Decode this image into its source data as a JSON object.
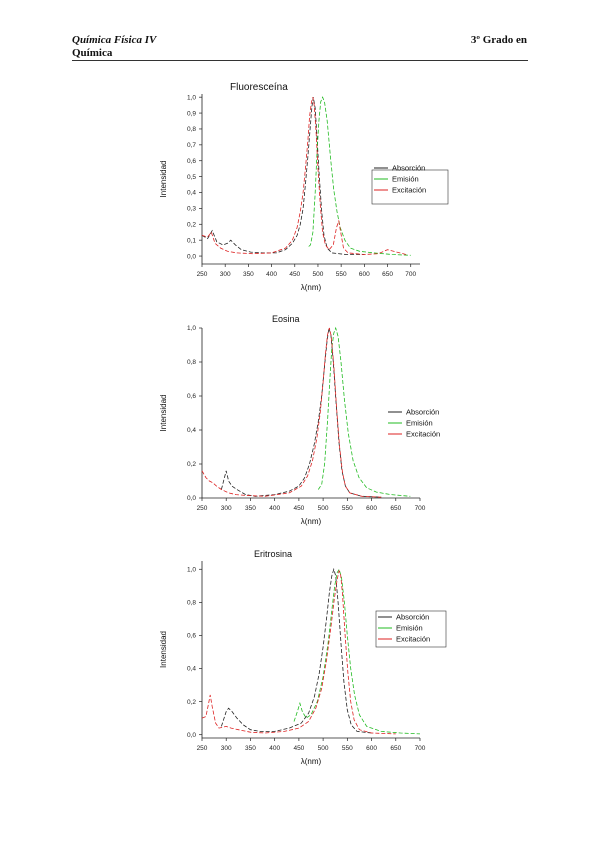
{
  "header": {
    "course": "Química Física IV",
    "degree_line1": "3º Grado en",
    "degree_line2": "Química"
  },
  "charts": [
    {
      "type": "line",
      "title": "Fluoresceína",
      "xlabel": "λ(nm)",
      "ylabel": "Intensidad",
      "xlim": [
        250,
        720
      ],
      "ylim": [
        -0.05,
        1.02
      ],
      "xticks": [
        250,
        300,
        350,
        400,
        450,
        500,
        550,
        600,
        650,
        700
      ],
      "yticks": [
        0.0,
        0.1,
        0.2,
        0.3,
        0.4,
        0.5,
        0.6,
        0.7,
        0.8,
        0.9,
        1.0
      ],
      "ytick_labels": [
        "0,0",
        "0,1",
        "0,2",
        "0,3",
        "0,4",
        "0,5",
        "0,6",
        "0,7",
        "0,8",
        "0,9",
        "1,0"
      ],
      "legend_position": "right",
      "legend_box": true,
      "series": [
        {
          "name": "Absorción",
          "color": "#222222",
          "dash": "4,2",
          "points": [
            [
              250,
              0.13
            ],
            [
              262,
              0.11
            ],
            [
              272,
              0.16
            ],
            [
              282,
              0.09
            ],
            [
              295,
              0.07
            ],
            [
              305,
              0.08
            ],
            [
              312,
              0.1
            ],
            [
              322,
              0.07
            ],
            [
              335,
              0.04
            ],
            [
              355,
              0.025
            ],
            [
              380,
              0.02
            ],
            [
              410,
              0.02
            ],
            [
              430,
              0.04
            ],
            [
              445,
              0.08
            ],
            [
              455,
              0.13
            ],
            [
              462,
              0.2
            ],
            [
              468,
              0.3
            ],
            [
              473,
              0.45
            ],
            [
              478,
              0.62
            ],
            [
              483,
              0.8
            ],
            [
              487,
              0.94
            ],
            [
              490,
              1.0
            ],
            [
              494,
              0.93
            ],
            [
              498,
              0.75
            ],
            [
              503,
              0.5
            ],
            [
              508,
              0.28
            ],
            [
              513,
              0.13
            ],
            [
              520,
              0.05
            ],
            [
              530,
              0.02
            ],
            [
              560,
              0.01
            ],
            [
              600,
              0.01
            ]
          ]
        },
        {
          "name": "Emisión",
          "color": "#22bb22",
          "dash": "4,2",
          "points": [
            [
              480,
              0.06
            ],
            [
              484,
              0.07
            ],
            [
              489,
              0.15
            ],
            [
              494,
              0.4
            ],
            [
              498,
              0.65
            ],
            [
              502,
              0.85
            ],
            [
              506,
              0.97
            ],
            [
              510,
              1.0
            ],
            [
              514,
              0.97
            ],
            [
              520,
              0.85
            ],
            [
              527,
              0.62
            ],
            [
              534,
              0.42
            ],
            [
              541,
              0.28
            ],
            [
              548,
              0.18
            ],
            [
              558,
              0.1
            ],
            [
              570,
              0.05
            ],
            [
              590,
              0.03
            ],
            [
              620,
              0.02
            ],
            [
              660,
              0.01
            ],
            [
              700,
              0.005
            ]
          ]
        },
        {
          "name": "Excitación",
          "color": "#dd2222",
          "dash": "4,2",
          "points": [
            [
              250,
              0.13
            ],
            [
              262,
              0.12
            ],
            [
              270,
              0.15
            ],
            [
              278,
              0.08
            ],
            [
              290,
              0.05
            ],
            [
              305,
              0.03
            ],
            [
              325,
              0.02
            ],
            [
              360,
              0.015
            ],
            [
              400,
              0.02
            ],
            [
              430,
              0.05
            ],
            [
              445,
              0.1
            ],
            [
              455,
              0.18
            ],
            [
              462,
              0.28
            ],
            [
              468,
              0.4
            ],
            [
              473,
              0.55
            ],
            [
              478,
              0.72
            ],
            [
              482,
              0.88
            ],
            [
              486,
              0.97
            ],
            [
              489,
              1.0
            ],
            [
              492,
              0.95
            ],
            [
              496,
              0.78
            ],
            [
              500,
              0.55
            ],
            [
              505,
              0.32
            ],
            [
              510,
              0.15
            ],
            [
              516,
              0.07
            ],
            [
              524,
              0.04
            ],
            [
              533,
              0.07
            ],
            [
              540,
              0.18
            ],
            [
              545,
              0.22
            ],
            [
              549,
              0.15
            ],
            [
              555,
              0.05
            ],
            [
              565,
              0.02
            ],
            [
              600,
              0.01
            ],
            [
              630,
              0.015
            ],
            [
              650,
              0.04
            ],
            [
              670,
              0.025
            ],
            [
              690,
              0.01
            ]
          ]
        }
      ]
    },
    {
      "type": "line",
      "title": "Eosina",
      "xlabel": "λ(nm)",
      "ylabel": "Intensidad",
      "xlim": [
        250,
        700
      ],
      "ylim": [
        0.0,
        1.0
      ],
      "xticks": [
        250,
        300,
        350,
        400,
        450,
        500,
        550,
        600,
        650,
        700
      ],
      "yticks": [
        0.0,
        0.2,
        0.4,
        0.6,
        0.8,
        1.0
      ],
      "ytick_labels": [
        "0,0",
        "0,2",
        "0,4",
        "0,6",
        "0,8",
        "1,0"
      ],
      "legend_position": "right",
      "legend_box": false,
      "series": [
        {
          "name": "Absorción",
          "color": "#222222",
          "dash": "4,2",
          "points": [
            [
              290,
              0.05
            ],
            [
              300,
              0.16
            ],
            [
              305,
              0.1
            ],
            [
              312,
              0.07
            ],
            [
              322,
              0.05
            ],
            [
              340,
              0.02
            ],
            [
              360,
              0.01
            ],
            [
              400,
              0.02
            ],
            [
              430,
              0.04
            ],
            [
              450,
              0.07
            ],
            [
              462,
              0.12
            ],
            [
              472,
              0.2
            ],
            [
              482,
              0.32
            ],
            [
              490,
              0.45
            ],
            [
              497,
              0.6
            ],
            [
              503,
              0.78
            ],
            [
              508,
              0.92
            ],
            [
              512,
              1.0
            ],
            [
              516,
              0.96
            ],
            [
              521,
              0.8
            ],
            [
              527,
              0.55
            ],
            [
              533,
              0.32
            ],
            [
              539,
              0.16
            ],
            [
              546,
              0.07
            ],
            [
              555,
              0.03
            ],
            [
              580,
              0.01
            ],
            [
              620,
              0.005
            ]
          ]
        },
        {
          "name": "Emisión",
          "color": "#22bb22",
          "dash": "4,2",
          "points": [
            [
              490,
              0.05
            ],
            [
              497,
              0.08
            ],
            [
              503,
              0.2
            ],
            [
              509,
              0.45
            ],
            [
              514,
              0.7
            ],
            [
              518,
              0.88
            ],
            [
              522,
              0.97
            ],
            [
              526,
              1.0
            ],
            [
              531,
              0.95
            ],
            [
              537,
              0.8
            ],
            [
              544,
              0.58
            ],
            [
              552,
              0.38
            ],
            [
              562,
              0.22
            ],
            [
              574,
              0.12
            ],
            [
              590,
              0.06
            ],
            [
              610,
              0.035
            ],
            [
              640,
              0.02
            ],
            [
              680,
              0.01
            ]
          ]
        },
        {
          "name": "Excitación",
          "color": "#dd2222",
          "dash": "4,2",
          "points": [
            [
              250,
              0.16
            ],
            [
              258,
              0.12
            ],
            [
              265,
              0.1
            ],
            [
              272,
              0.09
            ],
            [
              280,
              0.07
            ],
            [
              290,
              0.05
            ],
            [
              305,
              0.03
            ],
            [
              320,
              0.02
            ],
            [
              340,
              0.015
            ],
            [
              380,
              0.01
            ],
            [
              430,
              0.03
            ],
            [
              455,
              0.07
            ],
            [
              468,
              0.13
            ],
            [
              478,
              0.22
            ],
            [
              487,
              0.35
            ],
            [
              494,
              0.5
            ],
            [
              500,
              0.68
            ],
            [
              505,
              0.85
            ],
            [
              509,
              0.96
            ],
            [
              513,
              1.0
            ],
            [
              517,
              0.95
            ],
            [
              522,
              0.78
            ],
            [
              528,
              0.52
            ],
            [
              534,
              0.3
            ],
            [
              540,
              0.15
            ],
            [
              546,
              0.07
            ],
            [
              555,
              0.03
            ],
            [
              580,
              0.01
            ],
            [
              620,
              0.005
            ]
          ]
        }
      ]
    },
    {
      "type": "line",
      "title": "Eritrosina",
      "xlabel": "λ(nm)",
      "ylabel": "Intensidad",
      "xlim": [
        250,
        700
      ],
      "ylim": [
        -0.02,
        1.05
      ],
      "xticks": [
        250,
        300,
        350,
        400,
        450,
        500,
        550,
        600,
        650,
        700
      ],
      "yticks": [
        0.0,
        0.2,
        0.4,
        0.6,
        0.8,
        1.0
      ],
      "ytick_labels": [
        "0,0",
        "0,2",
        "0,4",
        "0,6",
        "0,8",
        "1,0"
      ],
      "legend_position": "right",
      "legend_box": true,
      "series": [
        {
          "name": "Absorción",
          "color": "#222222",
          "dash": "4,2",
          "points": [
            [
              290,
              0.05
            ],
            [
              300,
              0.14
            ],
            [
              305,
              0.16
            ],
            [
              312,
              0.14
            ],
            [
              322,
              0.1
            ],
            [
              335,
              0.06
            ],
            [
              350,
              0.03
            ],
            [
              370,
              0.02
            ],
            [
              400,
              0.02
            ],
            [
              430,
              0.04
            ],
            [
              455,
              0.07
            ],
            [
              470,
              0.13
            ],
            [
              482,
              0.23
            ],
            [
              492,
              0.37
            ],
            [
              500,
              0.53
            ],
            [
              507,
              0.7
            ],
            [
              513,
              0.86
            ],
            [
              518,
              0.96
            ],
            [
              522,
              1.0
            ],
            [
              526,
              0.96
            ],
            [
              531,
              0.8
            ],
            [
              537,
              0.55
            ],
            [
              543,
              0.32
            ],
            [
              550,
              0.15
            ],
            [
              558,
              0.06
            ],
            [
              570,
              0.02
            ],
            [
              600,
              0.01
            ]
          ]
        },
        {
          "name": "Emisión",
          "color": "#22bb22",
          "dash": "4,2",
          "points": [
            [
              440,
              0.08
            ],
            [
              447,
              0.14
            ],
            [
              452,
              0.19
            ],
            [
              457,
              0.14
            ],
            [
              465,
              0.1
            ],
            [
              475,
              0.12
            ],
            [
              488,
              0.2
            ],
            [
              500,
              0.35
            ],
            [
              510,
              0.55
            ],
            [
              518,
              0.75
            ],
            [
              524,
              0.9
            ],
            [
              529,
              0.98
            ],
            [
              533,
              1.0
            ],
            [
              538,
              0.95
            ],
            [
              544,
              0.8
            ],
            [
              550,
              0.6
            ],
            [
              557,
              0.4
            ],
            [
              565,
              0.24
            ],
            [
              575,
              0.12
            ],
            [
              590,
              0.05
            ],
            [
              620,
              0.02
            ],
            [
              660,
              0.01
            ],
            [
              700,
              0.005
            ]
          ]
        },
        {
          "name": "Excitación",
          "color": "#dd2222",
          "dash": "4,2",
          "points": [
            [
              250,
              0.1
            ],
            [
              258,
              0.11
            ],
            [
              263,
              0.18
            ],
            [
              267,
              0.24
            ],
            [
              271,
              0.17
            ],
            [
              278,
              0.07
            ],
            [
              285,
              0.04
            ],
            [
              300,
              0.05
            ],
            [
              310,
              0.04
            ],
            [
              325,
              0.03
            ],
            [
              350,
              0.015
            ],
            [
              380,
              0.01
            ],
            [
              420,
              0.02
            ],
            [
              450,
              0.04
            ],
            [
              470,
              0.08
            ],
            [
              485,
              0.16
            ],
            [
              497,
              0.28
            ],
            [
              507,
              0.45
            ],
            [
              516,
              0.65
            ],
            [
              523,
              0.82
            ],
            [
              529,
              0.94
            ],
            [
              533,
              0.99
            ],
            [
              536,
              0.97
            ],
            [
              540,
              0.85
            ],
            [
              545,
              0.62
            ],
            [
              551,
              0.38
            ],
            [
              557,
              0.2
            ],
            [
              564,
              0.09
            ],
            [
              575,
              0.03
            ],
            [
              600,
              0.01
            ],
            [
              650,
              0.005
            ]
          ]
        }
      ]
    }
  ]
}
